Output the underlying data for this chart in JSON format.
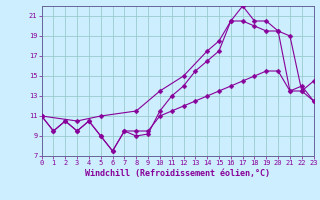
{
  "xlabel": "Windchill (Refroidissement éolien,°C)",
  "bg_color": "#cceeff",
  "grid_color": "#99cccc",
  "line_color": "#880099",
  "spine_color": "#666699",
  "x_min": 0,
  "x_max": 23,
  "y_min": 7,
  "y_max": 22,
  "y_ticks": [
    7,
    9,
    11,
    13,
    15,
    17,
    19,
    21
  ],
  "line1_x": [
    0,
    1,
    2,
    3,
    4,
    5,
    6,
    7,
    8,
    9,
    10,
    11,
    12,
    13,
    14,
    15,
    16,
    17,
    18,
    19,
    20,
    21,
    22,
    23
  ],
  "line1_y": [
    11,
    9.5,
    10.5,
    9.5,
    10.5,
    9.0,
    7.5,
    9.5,
    9.5,
    9.5,
    11.0,
    11.5,
    12.0,
    12.5,
    13.0,
    13.5,
    14.0,
    14.5,
    15.0,
    15.5,
    15.5,
    13.5,
    14.0,
    12.5
  ],
  "line2_x": [
    0,
    1,
    2,
    3,
    4,
    5,
    6,
    7,
    8,
    9,
    10,
    11,
    12,
    13,
    14,
    15,
    16,
    17,
    18,
    19,
    20,
    21,
    22,
    23
  ],
  "line2_y": [
    11,
    9.5,
    10.5,
    9.5,
    10.5,
    9.0,
    7.5,
    9.5,
    9.0,
    9.2,
    11.5,
    13.0,
    14.0,
    15.5,
    16.5,
    17.5,
    20.5,
    22.0,
    20.5,
    20.5,
    19.5,
    13.5,
    13.5,
    14.5
  ],
  "line3_x": [
    0,
    3,
    5,
    8,
    10,
    12,
    14,
    15,
    16,
    17,
    18,
    19,
    20,
    21,
    22,
    23
  ],
  "line3_y": [
    11,
    10.5,
    11.0,
    11.5,
    13.5,
    15.0,
    17.5,
    18.5,
    20.5,
    20.5,
    20.0,
    19.5,
    19.5,
    19.0,
    13.5,
    12.5
  ],
  "x_tick_labels": [
    "0",
    "1",
    "2",
    "3",
    "4",
    "5",
    "6",
    "7",
    "8",
    "9",
    "10",
    "11",
    "12",
    "13",
    "14",
    "15",
    "16",
    "17",
    "18",
    "19",
    "20",
    "21",
    "22",
    "23"
  ],
  "tick_fontsize": 5,
  "xlabel_fontsize": 6,
  "marker_size": 2.5
}
